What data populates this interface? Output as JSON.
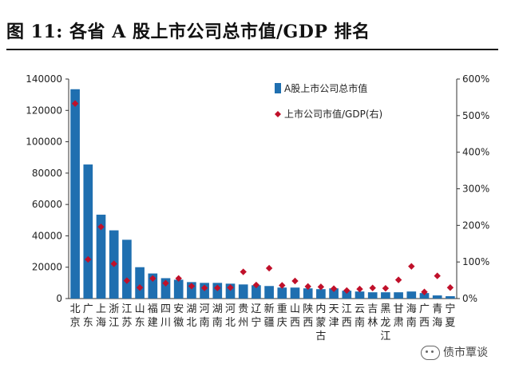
{
  "header": {
    "title": "图 11:  各省 A 股上市公司总市值/GDP 排名"
  },
  "watermark": {
    "text": "债市覃谈"
  },
  "colors": {
    "bar": "#1f6fb0",
    "marker": "#c0102a",
    "axis": "#333333",
    "text": "#222222"
  },
  "chart_data": {
    "type": "bar",
    "categories": [
      "北京",
      "广东",
      "上海",
      "浙江",
      "江苏",
      "山东",
      "福建",
      "四川",
      "安徽",
      "湖北",
      "河南",
      "湖南",
      "河北",
      "贵州",
      "辽宁",
      "新疆",
      "重庆",
      "山西",
      "陕西",
      "内蒙古",
      "天津",
      "江西",
      "云南",
      "吉林",
      "黑龙江",
      "甘肃",
      "海南",
      "广西",
      "青海",
      "宁夏"
    ],
    "ylim_left": [
      0,
      140000
    ],
    "ylim_right": [
      0,
      6
    ],
    "left_ticks": [
      "0",
      "20000",
      "40000",
      "60000",
      "80000",
      "100000",
      "120000",
      "140000"
    ],
    "right_ticks": [
      "0%",
      "100%",
      "200%",
      "300%",
      "400%",
      "500%",
      "600%"
    ],
    "series": [
      {
        "name": "A股上市公司总市值",
        "type": "bar",
        "axis": "left",
        "values": [
          133500,
          85500,
          53500,
          43500,
          37500,
          20000,
          16000,
          13000,
          12000,
          10500,
          10000,
          10000,
          9500,
          9000,
          8500,
          8000,
          7000,
          7000,
          6500,
          6000,
          6500,
          5000,
          4500,
          4000,
          4000,
          4000,
          4500,
          3500,
          2000,
          1500
        ]
      },
      {
        "name": "上市公司市值/GDP(右)",
        "type": "scatter",
        "axis": "right",
        "values": [
          5.33,
          1.07,
          1.96,
          0.95,
          0.49,
          0.3,
          0.55,
          0.42,
          0.55,
          0.34,
          0.29,
          0.29,
          0.3,
          0.73,
          0.37,
          0.83,
          0.36,
          0.48,
          0.33,
          0.32,
          0.27,
          0.22,
          0.26,
          0.29,
          0.28,
          0.51,
          0.88,
          0.18,
          0.62,
          0.3
        ]
      }
    ],
    "legend_position": "top-right",
    "grid": false
  }
}
